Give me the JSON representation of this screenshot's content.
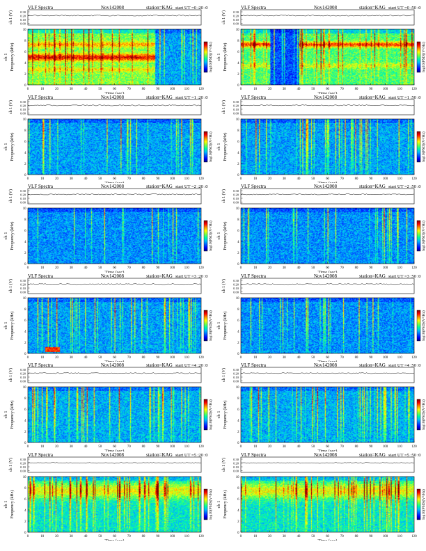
{
  "colors": {
    "colormap": [
      "#000080",
      "#0000ff",
      "#0060ff",
      "#00c0ff",
      "#00ffa0",
      "#80ff40",
      "#ffff00",
      "#ff9000",
      "#ff0000",
      "#800000"
    ]
  },
  "chart_data": [
    {
      "type": "heatmap",
      "title": "VLF Spectra",
      "date": "Nov142008",
      "station": "station=KAG",
      "start": "start  UT  =0 :20 :0",
      "ylabel_top": "ch 1 (V)",
      "ylabel_left": "ch 1",
      "ylabel": "Frequency  (kHz)",
      "xlabel": "Time  (sec)",
      "colorbar_label": "log10(PSD)(V²/Hz)",
      "xlim": [
        0,
        120
      ],
      "ylim": [
        0,
        10
      ],
      "top_ticks": [
        "0.30",
        "0.20",
        "0.10",
        "0.00"
      ],
      "x_ticks": [
        "0",
        "10",
        "20",
        "30",
        "40",
        "50",
        "60",
        "70",
        "80",
        "90",
        "100",
        "110",
        "120"
      ],
      "y_ticks": [
        "0",
        "2",
        "4",
        "6",
        "8",
        "10"
      ],
      "features": {
        "background_level": 0.55,
        "cutoff_time_sec": 88,
        "level_after_cutoff": 0.3,
        "bands_khz": [
          {
            "freq_khz": 5.0,
            "width_khz": 0.45,
            "level": 0.9
          },
          {
            "freq_khz": 7.3,
            "width_khz": 0.35,
            "level": 0.75
          },
          {
            "freq_khz": 2.8,
            "width_khz": 0.3,
            "level": 0.68
          }
        ],
        "sferic_density": 0.15,
        "vertical_line_time_sec": [
          30
        ]
      }
    },
    {
      "type": "heatmap",
      "title": "VLF Spectra",
      "date": "Nov142008",
      "station": "station=KAG",
      "start": "start  UT  =0 :50 :0",
      "ylabel_top": "ch 1 (V)",
      "ylabel_left": "ch 1",
      "ylabel": "Frequency  (kHz)",
      "xlabel": "Time  (sec)",
      "colorbar_label": "log10(PSD)(V²/Hz)",
      "xlim": [
        0,
        120
      ],
      "ylim": [
        0,
        10
      ],
      "top_ticks": [
        "0.30",
        "0.20",
        "0.10",
        "0.00"
      ],
      "x_ticks": [
        "0",
        "10",
        "20",
        "30",
        "40",
        "50",
        "60",
        "70",
        "80",
        "90",
        "100",
        "110",
        "120"
      ],
      "y_ticks": [
        "0",
        "2",
        "4",
        "6",
        "8",
        "10"
      ],
      "features": {
        "background_level": 0.5,
        "dark_interval_sec": [
          20,
          40
        ],
        "bands_khz": [
          {
            "freq_khz": 7.3,
            "width_khz": 0.35,
            "level": 0.85
          },
          {
            "freq_khz": 3.5,
            "width_khz": 0.35,
            "level": 0.62
          }
        ],
        "sferic_density": 0.18,
        "vertical_line_time_sec": [
          42
        ]
      }
    },
    {
      "type": "heatmap",
      "title": "VLF Spectra",
      "date": "Nov142008",
      "station": "station=KAG",
      "start": "start  UT  =1 :20 :0",
      "ylabel_top": "ch 1 (V)",
      "ylabel_left": "ch 1",
      "ylabel": "Frequency  (kHz)",
      "xlabel": "Time  (sec)",
      "colorbar_label": "log10(PSD)(V²/Hz)",
      "xlim": [
        0,
        120
      ],
      "ylim": [
        0,
        10
      ],
      "top_ticks": [
        "0.30",
        "0.20",
        "0.10",
        "0.00"
      ],
      "x_ticks": [
        "0",
        "10",
        "20",
        "30",
        "40",
        "50",
        "60",
        "70",
        "80",
        "90",
        "100",
        "110",
        "120"
      ],
      "y_ticks": [
        "0",
        "2",
        "4",
        "6",
        "8",
        "10"
      ],
      "features": {
        "background_level": 0.3,
        "bands_khz": [],
        "sferic_density": 0.14,
        "vertical_line_time_sec": [
          10,
          64
        ]
      }
    },
    {
      "type": "heatmap",
      "title": "VLF Spectra",
      "date": "Nov142008",
      "station": "station=KAG",
      "start": "start  UT  =1 :50 :0",
      "ylabel_top": "ch 1 (V)",
      "ylabel_left": "ch 1",
      "ylabel": "Frequency  (kHz)",
      "xlabel": "Time  (sec)",
      "colorbar_label": "log10(PSD)(V²/Hz)",
      "xlim": [
        0,
        120
      ],
      "ylim": [
        0,
        10
      ],
      "top_ticks": [
        "0.30",
        "0.20",
        "0.10",
        "0.00"
      ],
      "x_ticks": [
        "0",
        "10",
        "20",
        "30",
        "40",
        "50",
        "60",
        "70",
        "80",
        "90",
        "100",
        "110",
        "120"
      ],
      "y_ticks": [
        "0",
        "2",
        "4",
        "6",
        "8",
        "10"
      ],
      "features": {
        "background_level": 0.3,
        "bands_khz": [],
        "sferic_density": 0.14,
        "vertical_line_time_sec": [
          10
        ]
      }
    },
    {
      "type": "heatmap",
      "title": "VLF Spectra",
      "date": "Nov142008",
      "station": "station=KAG",
      "start": "start  UT  =2 :20 :0",
      "ylabel_top": "ch 1 (V)",
      "ylabel_left": "ch 1",
      "ylabel": "Frequency  (kHz)",
      "xlabel": "Time  (sec)",
      "colorbar_label": "log10(PSD)(V²/Hz)",
      "xlim": [
        0,
        120
      ],
      "ylim": [
        0,
        10
      ],
      "top_ticks": [
        "0.30",
        "0.20",
        "0.10",
        "0.00"
      ],
      "x_ticks": [
        "0",
        "10",
        "20",
        "30",
        "40",
        "50",
        "60",
        "70",
        "80",
        "90",
        "100",
        "110",
        "120"
      ],
      "y_ticks": [
        "0",
        "2",
        "4",
        "6",
        "8",
        "10"
      ],
      "features": {
        "background_level": 0.28,
        "bands_khz": [],
        "sferic_density": 0.12,
        "vertical_line_time_sec": []
      }
    },
    {
      "type": "heatmap",
      "title": "VLF Spectra",
      "date": "Nov142008",
      "station": "station=KAG",
      "start": "start  UT  =2 :50 :0",
      "ylabel_top": "ch 1 (V)",
      "ylabel_left": "ch 1",
      "ylabel": "Frequency  (kHz)",
      "xlabel": "Time  (sec)",
      "colorbar_label": "log10(PSD)(V²/Hz)",
      "xlim": [
        0,
        120
      ],
      "ylim": [
        0,
        10
      ],
      "top_ticks": [
        "0.30",
        "0.20",
        "0.10",
        "0.00"
      ],
      "x_ticks": [
        "0",
        "10",
        "20",
        "30",
        "40",
        "50",
        "60",
        "70",
        "80",
        "90",
        "100",
        "110",
        "120"
      ],
      "y_ticks": [
        "0",
        "2",
        "4",
        "6",
        "8",
        "10"
      ],
      "features": {
        "background_level": 0.28,
        "bands_khz": [],
        "sferic_density": 0.12,
        "vertical_line_time_sec": [
          99
        ]
      }
    },
    {
      "type": "heatmap",
      "title": "VLF Spectra",
      "date": "Nov142008",
      "station": "station=KAG",
      "start": "start  UT  =3 :20 :0",
      "ylabel_top": "ch 1 (V)",
      "ylabel_left": "ch 1",
      "ylabel": "Frequency  (kHz)",
      "xlabel": "Time  (sec)",
      "colorbar_label": "log10(PSD)(V²/Hz)",
      "xlim": [
        0,
        120
      ],
      "ylim": [
        0,
        10
      ],
      "top_ticks": [
        "0.30",
        "0.20",
        "0.10",
        "0.00"
      ],
      "x_ticks": [
        "0",
        "10",
        "20",
        "30",
        "40",
        "50",
        "60",
        "70",
        "80",
        "90",
        "100",
        "110",
        "120"
      ],
      "y_ticks": [
        "0",
        "2",
        "4",
        "6",
        "8",
        "10"
      ],
      "features": {
        "background_level": 0.3,
        "bands_khz": [],
        "sferic_density": 0.13,
        "vertical_line_time_sec": [
          20,
          60
        ],
        "patch": {
          "t0": 12,
          "t1": 22,
          "f0": 0.3,
          "f1": 1.2,
          "level": 0.85
        }
      }
    },
    {
      "type": "heatmap",
      "title": "VLF Spectra",
      "date": "Nov142008",
      "station": "station=KAG",
      "start": "start  UT  =3 :50 :0",
      "ylabel_top": "ch 1 (V)",
      "ylabel_left": "ch 1",
      "ylabel": "Frequency  (kHz)",
      "xlabel": "Time  (sec)",
      "colorbar_label": "log10(PSD)(V²/Hz)",
      "xlim": [
        0,
        120
      ],
      "ylim": [
        0,
        10
      ],
      "top_ticks": [
        "0.30",
        "0.20",
        "0.10",
        "0.00"
      ],
      "x_ticks": [
        "0",
        "10",
        "20",
        "30",
        "40",
        "50",
        "60",
        "70",
        "80",
        "90",
        "100",
        "110",
        "120"
      ],
      "y_ticks": [
        "0",
        "2",
        "4",
        "6",
        "8",
        "10"
      ],
      "features": {
        "background_level": 0.28,
        "bands_khz": [],
        "sferic_density": 0.12,
        "vertical_line_time_sec": []
      }
    },
    {
      "type": "heatmap",
      "title": "VLF Spectra",
      "date": "Nov142008",
      "station": "station=KAG",
      "start": "start  UT  =4 :20 :0",
      "ylabel_top": "ch 1 (V)",
      "ylabel_left": "ch 1",
      "ylabel": "Frequency  (kHz)",
      "xlabel": "Time  (sec)",
      "colorbar_label": "log10(PSD)(V²/Hz)",
      "xlim": [
        0,
        120
      ],
      "ylim": [
        0,
        10
      ],
      "top_ticks": [
        "0.30",
        "0.20",
        "0.10",
        "0.00"
      ],
      "x_ticks": [
        "0",
        "10",
        "20",
        "30",
        "40",
        "50",
        "60",
        "70",
        "80",
        "90",
        "100",
        "110",
        "120"
      ],
      "y_ticks": [
        "0",
        "2",
        "4",
        "6",
        "8",
        "10"
      ],
      "features": {
        "background_level": 0.32,
        "bands_khz": [],
        "sferic_density": 0.16,
        "vertical_line_time_sec": [
          18,
          41,
          63
        ]
      }
    },
    {
      "type": "heatmap",
      "title": "VLF Spectra",
      "date": "Nov142008",
      "station": "station=KAG",
      "start": "start  UT  =4 :50 :0",
      "ylabel_top": "ch 1 (V)",
      "ylabel_left": "ch 1",
      "ylabel": "Frequency  (kHz)",
      "xlabel": "Time  (sec)",
      "colorbar_label": "log10(PSD)(V²/Hz)",
      "xlim": [
        0,
        120
      ],
      "ylim": [
        0,
        10
      ],
      "top_ticks": [
        "0.30",
        "0.20",
        "0.10",
        "0.00"
      ],
      "x_ticks": [
        "0",
        "10",
        "20",
        "30",
        "40",
        "50",
        "60",
        "70",
        "80",
        "90",
        "100",
        "110",
        "120"
      ],
      "y_ticks": [
        "0",
        "2",
        "4",
        "6",
        "8",
        "10"
      ],
      "features": {
        "background_level": 0.32,
        "bands_khz": [],
        "sferic_density": 0.16,
        "vertical_line_time_sec": [
          12,
          53
        ]
      }
    },
    {
      "type": "heatmap",
      "title": "VLF Spectra",
      "date": "Nov142008",
      "station": "station=KAG",
      "start": "start  UT  =5 :20 :0",
      "ylabel_top": "ch 1 (V)",
      "ylabel_left": "ch 1",
      "ylabel": "Frequency  (kHz)",
      "xlabel": "Time  (sec)",
      "colorbar_label": "log10(PSD)(V²/Hz)",
      "xlim": [
        0,
        120
      ],
      "ylim": [
        0,
        10
      ],
      "top_ticks": [
        "0.30",
        "0.20",
        "0.10",
        "0.00"
      ],
      "x_ticks": [
        "0",
        "10",
        "20",
        "30",
        "40",
        "50",
        "60",
        "70",
        "80",
        "90",
        "100",
        "110",
        "120"
      ],
      "y_ticks": [
        "0",
        "2",
        "4",
        "6",
        "8",
        "10"
      ],
      "features": {
        "background_level": 0.4,
        "bands_khz": [
          {
            "freq_khz": 7.5,
            "width_khz": 1.0,
            "level": 0.66
          }
        ],
        "sferic_density": 0.2,
        "vertical_line_time_sec": []
      }
    },
    {
      "type": "heatmap",
      "title": "VLF Spectra",
      "date": "Nov142008",
      "station": "station=KAG",
      "start": "start  UT  =5 :50 :0",
      "ylabel_top": "ch 1 (V)",
      "ylabel_left": "ch 1",
      "ylabel": "Frequency  (kHz)",
      "xlabel": "Time  (sec)",
      "colorbar_label": "log10(PSD)(V²/Hz)",
      "xlim": [
        0,
        120
      ],
      "ylim": [
        0,
        10
      ],
      "top_ticks": [
        "0.30",
        "0.20",
        "0.10",
        "0.00"
      ],
      "x_ticks": [
        "0",
        "10",
        "20",
        "30",
        "40",
        "50",
        "60",
        "70",
        "80",
        "90",
        "100",
        "110",
        "120"
      ],
      "y_ticks": [
        "0",
        "2",
        "4",
        "6",
        "8",
        "10"
      ],
      "features": {
        "background_level": 0.4,
        "bands_khz": [
          {
            "freq_khz": 7.5,
            "width_khz": 1.0,
            "level": 0.66
          }
        ],
        "sferic_density": 0.2,
        "vertical_line_time_sec": [
          101
        ]
      }
    }
  ]
}
